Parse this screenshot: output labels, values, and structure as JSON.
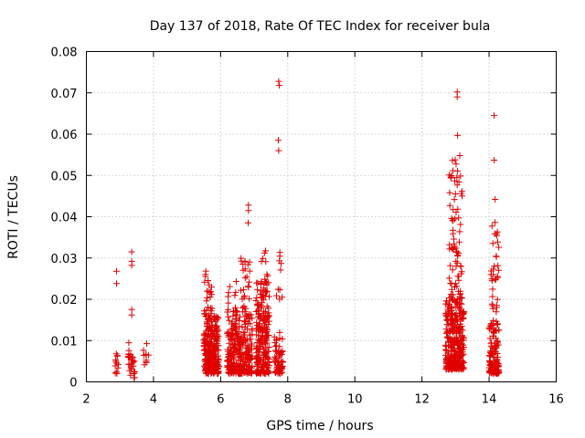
{
  "chart_data": {
    "type": "scatter",
    "title": "Day 137 of 2018, Rate Of TEC Index for receiver bula",
    "xlabel": "GPS time / hours",
    "ylabel": "ROTI / TECUs",
    "xlim": [
      2,
      16
    ],
    "ylim": [
      0,
      0.08
    ],
    "xticks": [
      2,
      4,
      6,
      8,
      10,
      12,
      14,
      16
    ],
    "xtick_labels": [
      "2",
      "4",
      "6",
      "8",
      "10",
      "12",
      "14",
      "16"
    ],
    "yticks": [
      0,
      0.01,
      0.02,
      0.03,
      0.04,
      0.05,
      0.06,
      0.07,
      0.08
    ],
    "ytick_labels": [
      "0",
      "0.01",
      "0.02",
      "0.03",
      "0.04",
      "0.05",
      "0.06",
      "0.07",
      "0.08"
    ],
    "grid": true,
    "marker": "+",
    "color": "#e00000",
    "notable_points": [
      {
        "x": 2.9,
        "y": 0.0268
      },
      {
        "x": 2.9,
        "y": 0.0238
      },
      {
        "x": 3.35,
        "y": 0.0315
      },
      {
        "x": 3.35,
        "y": 0.0292
      },
      {
        "x": 3.35,
        "y": 0.0282
      },
      {
        "x": 3.35,
        "y": 0.0175
      },
      {
        "x": 3.35,
        "y": 0.0162
      },
      {
        "x": 7.73,
        "y": 0.0728
      },
      {
        "x": 7.75,
        "y": 0.0718
      },
      {
        "x": 7.72,
        "y": 0.0585
      },
      {
        "x": 7.73,
        "y": 0.056
      },
      {
        "x": 6.83,
        "y": 0.0428
      },
      {
        "x": 6.83,
        "y": 0.0415
      },
      {
        "x": 6.82,
        "y": 0.0385
      },
      {
        "x": 13.05,
        "y": 0.0702
      },
      {
        "x": 13.05,
        "y": 0.069
      },
      {
        "x": 13.06,
        "y": 0.0597
      },
      {
        "x": 14.15,
        "y": 0.0645
      },
      {
        "x": 14.15,
        "y": 0.0537
      },
      {
        "x": 14.18,
        "y": 0.0442
      }
    ],
    "clusters": [
      {
        "x_range": [
          2.85,
          2.95
        ],
        "y_range": [
          0.002,
          0.007
        ],
        "count": 12
      },
      {
        "x_range": [
          3.25,
          3.45
        ],
        "y_range": [
          0.001,
          0.011
        ],
        "count": 30
      },
      {
        "x_range": [
          3.7,
          3.85
        ],
        "y_range": [
          0.002,
          0.01
        ],
        "count": 10
      },
      {
        "x_range": [
          5.5,
          5.95
        ],
        "y_range": [
          0.002,
          0.016
        ],
        "count": 260
      },
      {
        "x_range": [
          5.5,
          5.75
        ],
        "y_range": [
          0.016,
          0.027
        ],
        "count": 25
      },
      {
        "x_range": [
          6.2,
          6.6
        ],
        "y_range": [
          0.002,
          0.014
        ],
        "count": 140
      },
      {
        "x_range": [
          6.2,
          6.5
        ],
        "y_range": [
          0.014,
          0.025
        ],
        "count": 25
      },
      {
        "x_range": [
          6.55,
          6.95
        ],
        "y_range": [
          0.002,
          0.016
        ],
        "count": 150
      },
      {
        "x_range": [
          6.6,
          6.9
        ],
        "y_range": [
          0.016,
          0.03
        ],
        "count": 30
      },
      {
        "x_range": [
          7.05,
          7.45
        ],
        "y_range": [
          0.002,
          0.024
        ],
        "count": 230
      },
      {
        "x_range": [
          7.2,
          7.4
        ],
        "y_range": [
          0.024,
          0.032
        ],
        "count": 12
      },
      {
        "x_range": [
          7.6,
          7.85
        ],
        "y_range": [
          0.002,
          0.012
        ],
        "count": 70
      },
      {
        "x_range": [
          7.65,
          7.85
        ],
        "y_range": [
          0.02,
          0.032
        ],
        "count": 10
      },
      {
        "x_range": [
          12.7,
          13.25
        ],
        "y_range": [
          0.003,
          0.02
        ],
        "count": 320
      },
      {
        "x_range": [
          12.8,
          13.2
        ],
        "y_range": [
          0.02,
          0.055
        ],
        "count": 80
      },
      {
        "x_range": [
          14.0,
          14.3
        ],
        "y_range": [
          0.002,
          0.014
        ],
        "count": 120
      },
      {
        "x_range": [
          14.05,
          14.3
        ],
        "y_range": [
          0.014,
          0.039
        ],
        "count": 40
      }
    ]
  }
}
